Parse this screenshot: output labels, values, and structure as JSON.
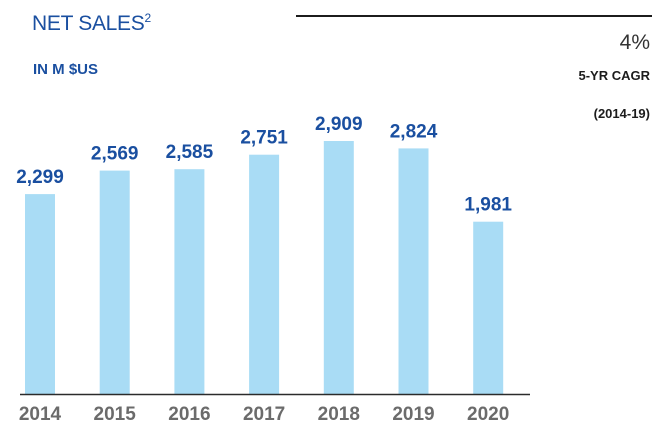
{
  "header": {
    "title": "NET SALES",
    "title_footnote": "2",
    "unit": "IN M $US"
  },
  "kpi": {
    "value": "4%",
    "label": "5-YR CAGR",
    "period": "(2014-19)"
  },
  "colors": {
    "bar": "#a9dcf5",
    "accent": "#1a4fa0",
    "axis": "#2b2b2b",
    "tick_text": "#6b6b6b"
  },
  "chart_data": {
    "type": "bar",
    "title": "NET SALES",
    "ylabel": "IN M $US",
    "categories": [
      "2014",
      "2015",
      "2016",
      "2017",
      "2018",
      "2019",
      "2020"
    ],
    "values": [
      2299,
      2569,
      2585,
      2751,
      2909,
      2824,
      1981
    ],
    "value_labels": [
      "2,299",
      "2,569",
      "2,585",
      "2,751",
      "2,909",
      "2,824",
      "1,981"
    ],
    "ylim": [
      0,
      2909
    ],
    "grid": false,
    "legend": "none"
  }
}
